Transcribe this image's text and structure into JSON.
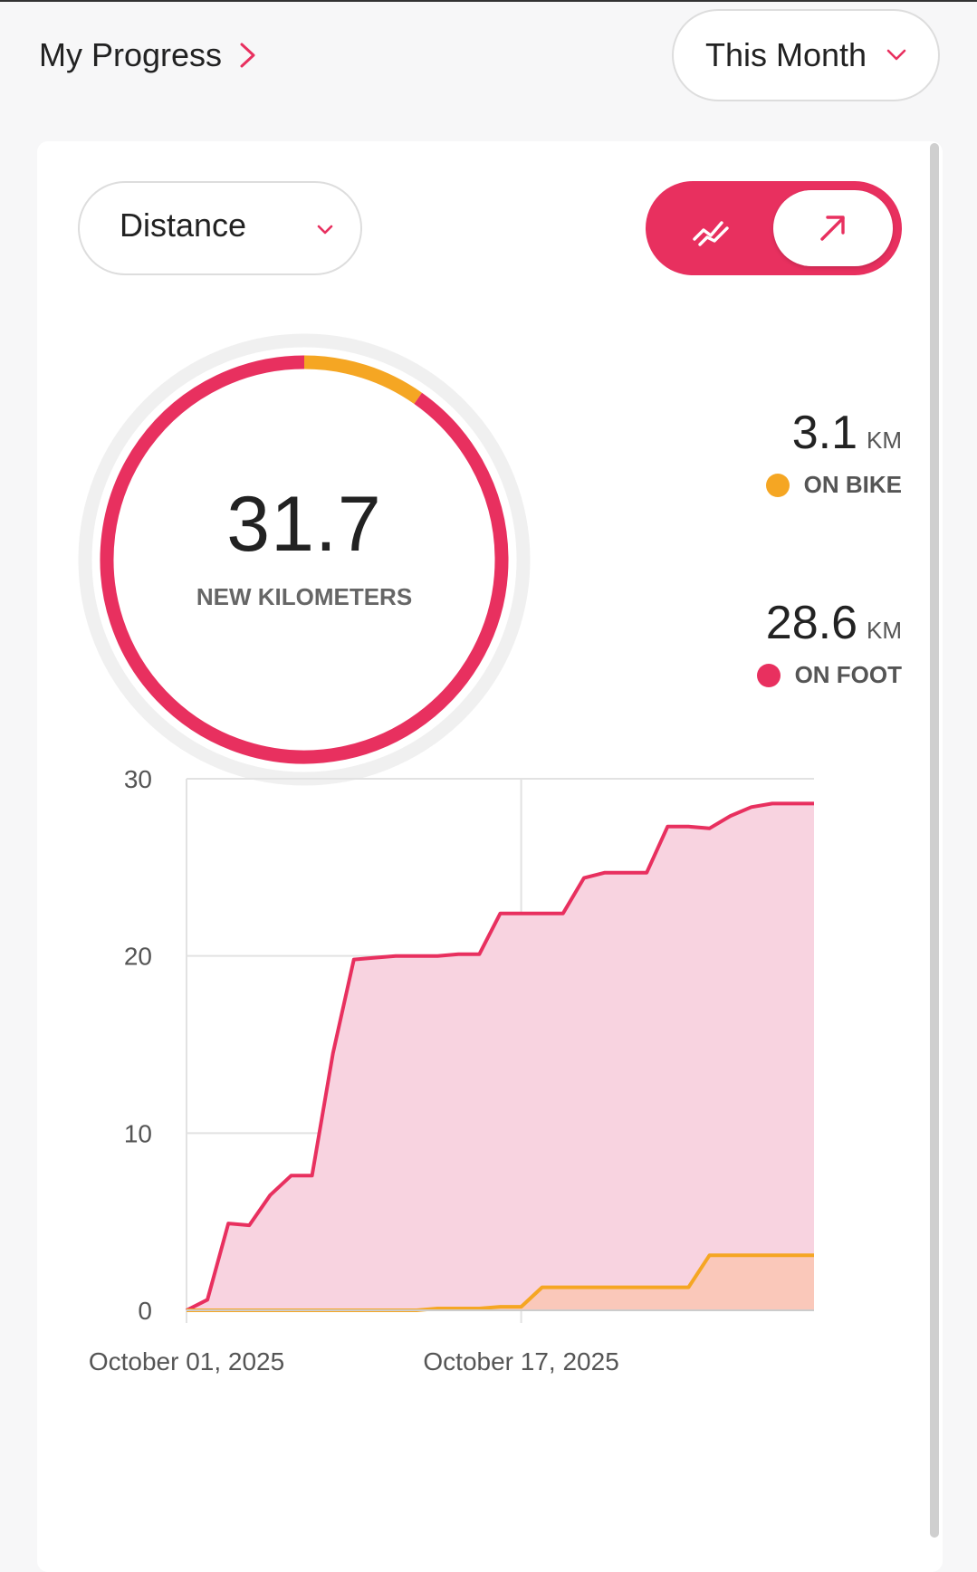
{
  "header": {
    "title": "My Progress",
    "period": "This Month"
  },
  "controls": {
    "metric": "Distance",
    "toggle": {
      "options": [
        "line-chart-icon",
        "arrow-up-right-icon"
      ],
      "selected": "arrow-up-right-icon"
    }
  },
  "summary": {
    "total_value": "31.7",
    "total_label": "NEW KILOMETERS",
    "bike": {
      "value": "3.1",
      "unit": "KM",
      "label": "ON BIKE",
      "color": "#f5a623"
    },
    "foot": {
      "value": "28.6",
      "unit": "KM",
      "label": "ON FOOT",
      "color": "#e8305f"
    }
  },
  "colors": {
    "accent": "#e8305f",
    "bike": "#f5a623",
    "foot_fill": "#f8d3e0",
    "bike_fill": "#f9c7b6"
  },
  "chart_data": [
    {
      "type": "pie",
      "title": "",
      "categories": [
        "ON BIKE",
        "ON FOOT"
      ],
      "values": [
        3.1,
        28.6
      ],
      "colors": [
        "#f5a623",
        "#e8305f"
      ]
    },
    {
      "type": "area",
      "title": "",
      "xlabel": "",
      "ylabel": "",
      "ylim": [
        0,
        30
      ],
      "yticks": [
        0,
        10,
        20,
        30
      ],
      "xticks": [
        {
          "label": "October 01, 2025",
          "day": 1
        },
        {
          "label": "October 17, 2025",
          "day": 17
        }
      ],
      "xlim": [
        1,
        31
      ],
      "grid": true,
      "series": [
        {
          "color": "#e8305f",
          "fill": "#f8d3e0",
          "points": [
            [
              1,
              0
            ],
            [
              2,
              0.6
            ],
            [
              3,
              4.9
            ],
            [
              4,
              4.8
            ],
            [
              5,
              6.5
            ],
            [
              6,
              7.6
            ],
            [
              7,
              7.6
            ],
            [
              8,
              14.5
            ],
            [
              9,
              19.8
            ],
            [
              10,
              19.9
            ],
            [
              11,
              20.0
            ],
            [
              12,
              20.0
            ],
            [
              13,
              20.0
            ],
            [
              14,
              20.1
            ],
            [
              15,
              20.1
            ],
            [
              16,
              22.4
            ],
            [
              17,
              22.4
            ],
            [
              18,
              22.4
            ],
            [
              19,
              22.4
            ],
            [
              20,
              24.4
            ],
            [
              21,
              24.7
            ],
            [
              22,
              24.7
            ],
            [
              23,
              24.7
            ],
            [
              24,
              27.3
            ],
            [
              25,
              27.3
            ],
            [
              26,
              27.2
            ],
            [
              27,
              27.9
            ],
            [
              28,
              28.4
            ],
            [
              29,
              28.6
            ],
            [
              30,
              28.6
            ],
            [
              31,
              28.6
            ]
          ]
        },
        {
          "color": "#f5a623",
          "fill": "#f9c7b6",
          "points": [
            [
              1,
              0
            ],
            [
              12,
              0
            ],
            [
              13,
              0.1
            ],
            [
              15,
              0.1
            ],
            [
              16,
              0.2
            ],
            [
              17,
              0.2
            ],
            [
              18,
              1.3
            ],
            [
              19,
              1.3
            ],
            [
              20,
              1.3
            ],
            [
              21,
              1.3
            ],
            [
              22,
              1.3
            ],
            [
              23,
              1.3
            ],
            [
              24,
              1.3
            ],
            [
              25,
              1.3
            ],
            [
              26,
              3.1
            ],
            [
              27,
              3.1
            ],
            [
              28,
              3.1
            ],
            [
              29,
              3.1
            ],
            [
              30,
              3.1
            ],
            [
              31,
              3.1
            ]
          ]
        }
      ]
    }
  ]
}
